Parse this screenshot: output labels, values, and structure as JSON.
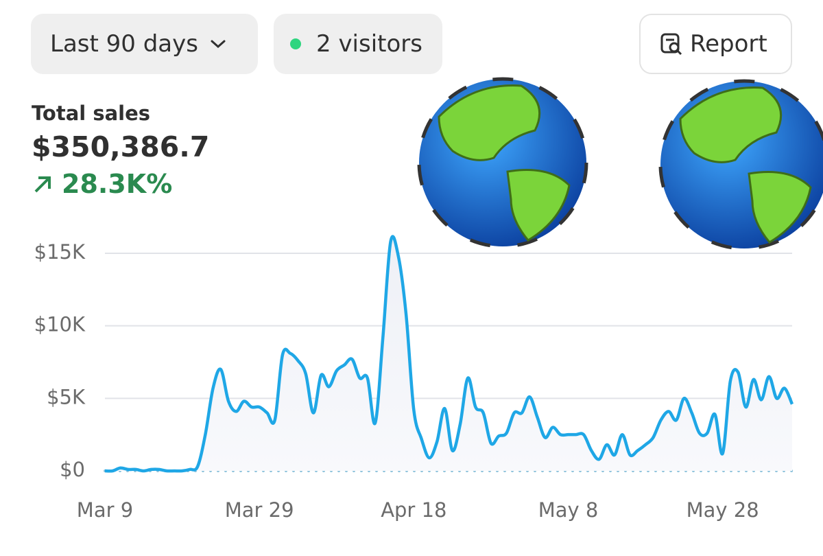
{
  "header": {
    "range_button": "Last 90 days",
    "visitors": "2 visitors",
    "report": "Report"
  },
  "metric": {
    "label": "Total sales",
    "value": "$350,386.7",
    "change": "28.3K%"
  },
  "chart_data": {
    "type": "line",
    "categories": [
      "Mar 9",
      null,
      null,
      null,
      null,
      null,
      null,
      null,
      null,
      null,
      null,
      null,
      null,
      null,
      null,
      null,
      null,
      null,
      null,
      null,
      "Mar 29",
      null,
      null,
      null,
      null,
      null,
      null,
      null,
      null,
      null,
      null,
      null,
      null,
      null,
      null,
      null,
      null,
      null,
      null,
      null,
      "Apr 18",
      null,
      null,
      null,
      null,
      null,
      null,
      null,
      null,
      null,
      null,
      null,
      null,
      null,
      null,
      null,
      null,
      null,
      null,
      null,
      "May 8",
      null,
      null,
      null,
      null,
      null,
      null,
      null,
      null,
      null,
      null,
      null,
      null,
      null,
      null,
      null,
      null,
      null,
      null,
      null,
      "May 28",
      null,
      null,
      null,
      null,
      null,
      null,
      null,
      null,
      null
    ],
    "series": [
      {
        "color": "#1fa7e6",
        "values": [
          0,
          0,
          200,
          100,
          100,
          0,
          100,
          100,
          0,
          0,
          0,
          100,
          300,
          2500,
          5700,
          7000,
          4800,
          4100,
          4800,
          4400,
          4400,
          4000,
          3500,
          8000,
          8100,
          7600,
          6700,
          4000,
          6600,
          5800,
          6900,
          7300,
          7700,
          6400,
          6400,
          3300,
          9200,
          15800,
          14800,
          10800,
          4200,
          2200,
          900,
          2000,
          4300,
          1400,
          3200,
          6400,
          4400,
          4000,
          1900,
          2400,
          2600,
          4000,
          4000,
          5100,
          3700,
          2300,
          3000,
          2500,
          2500,
          2500,
          2500,
          1400,
          800,
          1800,
          1100,
          2500,
          1100,
          1400,
          1800,
          2300,
          3500,
          4100,
          3500,
          5000,
          4000,
          2600,
          2600,
          3900,
          1200,
          6200,
          6800,
          4400,
          6300,
          4900,
          6500,
          5000,
          5700,
          4600
        ]
      },
      {
        "color": "#8fc3dc",
        "dashed": true,
        "values": [
          0,
          0,
          0,
          0,
          0,
          0,
          0,
          0,
          0,
          0,
          0,
          0,
          0,
          0,
          0,
          0,
          0,
          0,
          0,
          0,
          0,
          0,
          0,
          0,
          0,
          0,
          0,
          0,
          0,
          0,
          0,
          0,
          0,
          0,
          0,
          0,
          0,
          0,
          0,
          0,
          0,
          0,
          0,
          0,
          0,
          0,
          0,
          0,
          0,
          0,
          0,
          0,
          0,
          0,
          0,
          0,
          0,
          0,
          0,
          0,
          0,
          0,
          0,
          0,
          0,
          0,
          0,
          0,
          0,
          0,
          0,
          0,
          0,
          0,
          0,
          0,
          0,
          0,
          0,
          0,
          0,
          0,
          0,
          0,
          0,
          0,
          0,
          0,
          0,
          0
        ]
      }
    ],
    "ylim": [
      0,
      16000
    ],
    "yticks": [
      {
        "value": 0,
        "label": "$0"
      },
      {
        "value": 5000,
        "label": "$5K"
      },
      {
        "value": 10000,
        "label": "$10K"
      },
      {
        "value": 15000,
        "label": "$15K"
      }
    ],
    "grid": true
  }
}
